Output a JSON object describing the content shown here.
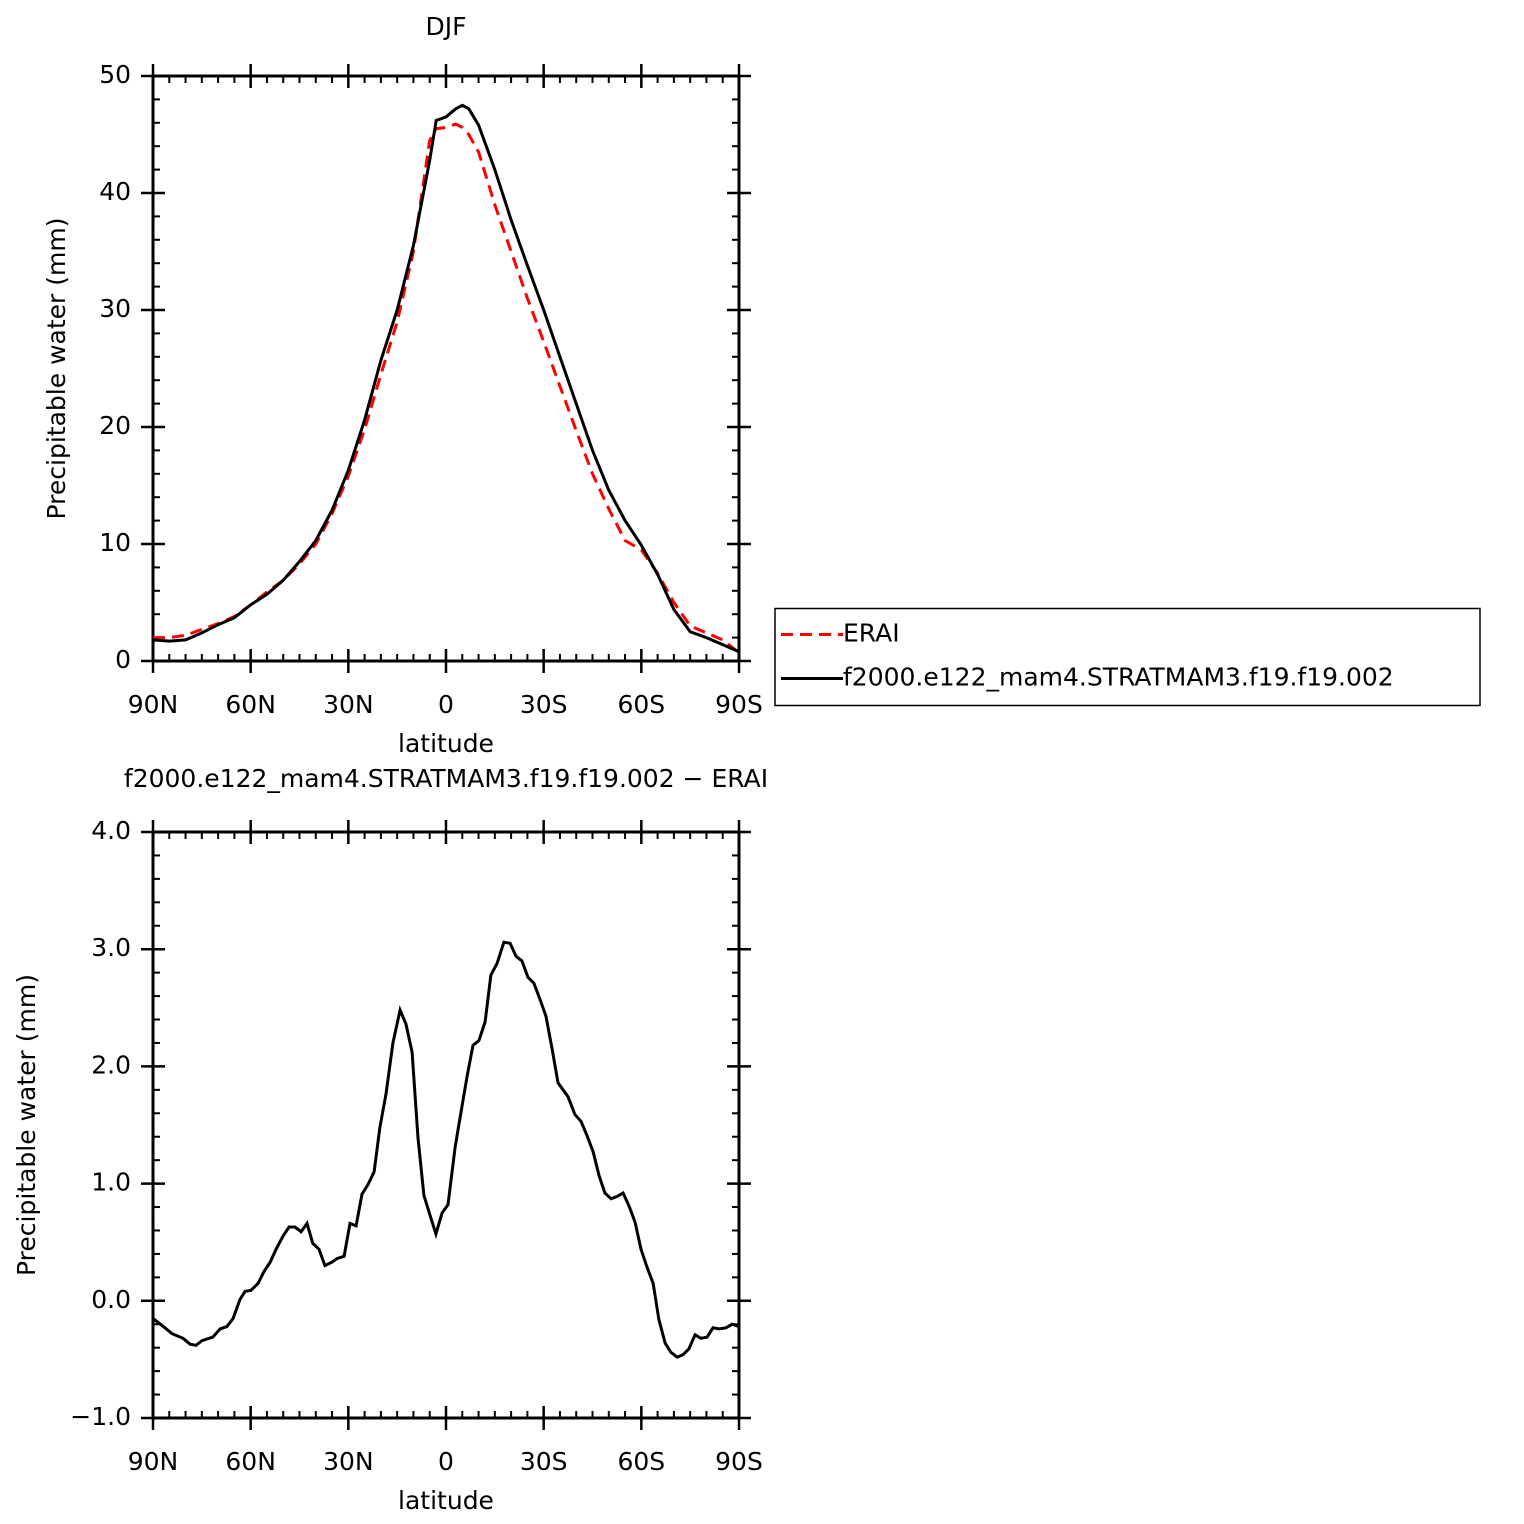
{
  "chart_data": [
    {
      "type": "line",
      "title": "DJF",
      "xlabel": "latitude",
      "ylabel": "Precipitable water (mm)",
      "x": [
        90,
        85,
        80,
        75,
        70,
        65,
        60,
        55,
        50,
        45,
        40,
        35,
        30,
        25,
        20,
        15,
        10,
        5,
        3,
        0,
        -3,
        -5,
        -7,
        -10,
        -15,
        -20,
        -25,
        -30,
        -35,
        -40,
        -45,
        -50,
        -55,
        -60,
        -65,
        -70,
        -75,
        -80,
        -85,
        -90
      ],
      "series": [
        {
          "name": "ERAI",
          "color": "#ff0000",
          "linestyle": "dashed",
          "values": [
            2.0,
            2.0,
            2.2,
            2.7,
            3.2,
            3.8,
            4.8,
            5.9,
            6.9,
            8.3,
            10.0,
            12.6,
            15.8,
            19.8,
            24.5,
            29.0,
            35.0,
            44.5,
            45.5,
            45.6,
            45.9,
            45.6,
            45.0,
            43.5,
            39.0,
            35.0,
            31.0,
            27.3,
            23.5,
            19.7,
            16.0,
            13.0,
            10.3,
            9.5,
            7.5,
            5.0,
            3.0,
            2.4,
            1.8,
            0.7
          ]
        },
        {
          "name": "f2000.e122_mam4.STRATMAM3.f19.f19.002",
          "color": "#000000",
          "linestyle": "solid",
          "values": [
            1.8,
            1.7,
            1.8,
            2.4,
            3.1,
            3.7,
            4.8,
            5.7,
            6.9,
            8.5,
            10.3,
            12.9,
            16.3,
            20.6,
            25.7,
            30.0,
            35.5,
            42.8,
            46.2,
            46.5,
            47.2,
            47.5,
            47.2,
            45.8,
            42.0,
            37.7,
            33.8,
            30.0,
            26.0,
            22.0,
            18.0,
            14.6,
            12.0,
            9.9,
            7.4,
            4.4,
            2.5,
            2.0,
            1.4,
            0.8
          ]
        }
      ],
      "xlim": [
        90,
        -90
      ],
      "xticks": [
        {
          "value": 90,
          "label": "90N"
        },
        {
          "value": 60,
          "label": "60N"
        },
        {
          "value": 30,
          "label": "30N"
        },
        0,
        {
          "value": -30,
          "label": "30S"
        },
        {
          "value": -60,
          "label": "60S"
        },
        {
          "value": -90,
          "label": "90S"
        }
      ],
      "ylim": [
        0,
        50
      ],
      "yticks": [
        0,
        10,
        20,
        30,
        40,
        50
      ],
      "legend": "right"
    },
    {
      "type": "line",
      "title": "f2000.e122_mam4.STRATMAM3.f19.f19.002 − ERAI",
      "xlabel": "latitude",
      "ylabel": "Precipitable water (mm)",
      "x": [
        90,
        86.3,
        84.2,
        80.8,
        78.6,
        76.8,
        74.9,
        71.6,
        69.4,
        67.3,
        65.4,
        63.3,
        61.7,
        59.9,
        57.7,
        55.9,
        54.0,
        52.2,
        50.1,
        48.2,
        46.4,
        44.5,
        42.7,
        40.9,
        39.0,
        37.2,
        35.0,
        33.5,
        31.3,
        29.5,
        27.6,
        25.8,
        24.0,
        22.1,
        20.3,
        18.4,
        16.3,
        14.1,
        12.3,
        10.4,
        8.6,
        6.8,
        4.9,
        3.1,
        1.2,
        -0.6,
        -2.8,
        -4.6,
        -6.5,
        -8.3,
        -10.1,
        -12.0,
        -13.8,
        -15.7,
        -17.8,
        -19.7,
        -21.5,
        -23.3,
        -25.2,
        -27.0,
        -28.9,
        -30.7,
        -32.6,
        -34.4,
        -37.5,
        -39.6,
        -41.5,
        -43.3,
        -45.2,
        -47.0,
        -48.8,
        -50.7,
        -52.5,
        -54.4,
        -56.2,
        -58.1,
        -59.9,
        -61.7,
        -63.6,
        -65.4,
        -67.3,
        -69.1,
        -71.0,
        -72.8,
        -74.6,
        -76.5,
        -78.3,
        -80.2,
        -82.0,
        -83.9,
        -86.0,
        -87.9,
        -90
      ],
      "series": [
        {
          "color": "#000000",
          "linestyle": "solid",
          "values": [
            -0.15,
            -0.23,
            -0.28,
            -0.32,
            -0.37,
            -0.38,
            -0.34,
            -0.31,
            -0.24,
            -0.22,
            -0.15,
            0.01,
            0.08,
            0.09,
            0.15,
            0.25,
            0.33,
            0.44,
            0.55,
            0.63,
            0.63,
            0.59,
            0.66,
            0.49,
            0.44,
            0.3,
            0.33,
            0.36,
            0.38,
            0.66,
            0.64,
            0.91,
            0.99,
            1.1,
            1.48,
            1.77,
            2.2,
            2.48,
            2.36,
            2.12,
            1.39,
            0.9,
            0.73,
            0.57,
            0.75,
            0.82,
            1.31,
            1.61,
            1.92,
            2.18,
            2.22,
            2.38,
            2.78,
            2.88,
            3.06,
            3.05,
            2.94,
            2.9,
            2.76,
            2.71,
            2.57,
            2.43,
            2.15,
            1.86,
            1.74,
            1.59,
            1.53,
            1.41,
            1.27,
            1.07,
            0.92,
            0.87,
            0.89,
            0.92,
            0.81,
            0.67,
            0.44,
            0.29,
            0.15,
            -0.16,
            -0.36,
            -0.44,
            -0.48,
            -0.46,
            -0.41,
            -0.29,
            -0.32,
            -0.31,
            -0.23,
            -0.24,
            -0.23,
            -0.2,
            -0.22
          ]
        }
      ],
      "xlim": [
        90,
        -90
      ],
      "xticks": [
        {
          "value": 90,
          "label": "90N"
        },
        {
          "value": 60,
          "label": "60N"
        },
        {
          "value": 30,
          "label": "30N"
        },
        0,
        {
          "value": -30,
          "label": "30S"
        },
        {
          "value": -60,
          "label": "60S"
        },
        {
          "value": -90,
          "label": "90S"
        }
      ],
      "ylim": [
        -1,
        4
      ],
      "yticks": [
        {
          "value": -1,
          "label": "−1.0"
        },
        {
          "value": 0,
          "label": "0.0"
        },
        {
          "value": 1,
          "label": "1.0"
        },
        {
          "value": 2,
          "label": "2.0"
        },
        {
          "value": 3,
          "label": "3.0"
        },
        {
          "value": 4,
          "label": "4.0"
        }
      ]
    }
  ]
}
